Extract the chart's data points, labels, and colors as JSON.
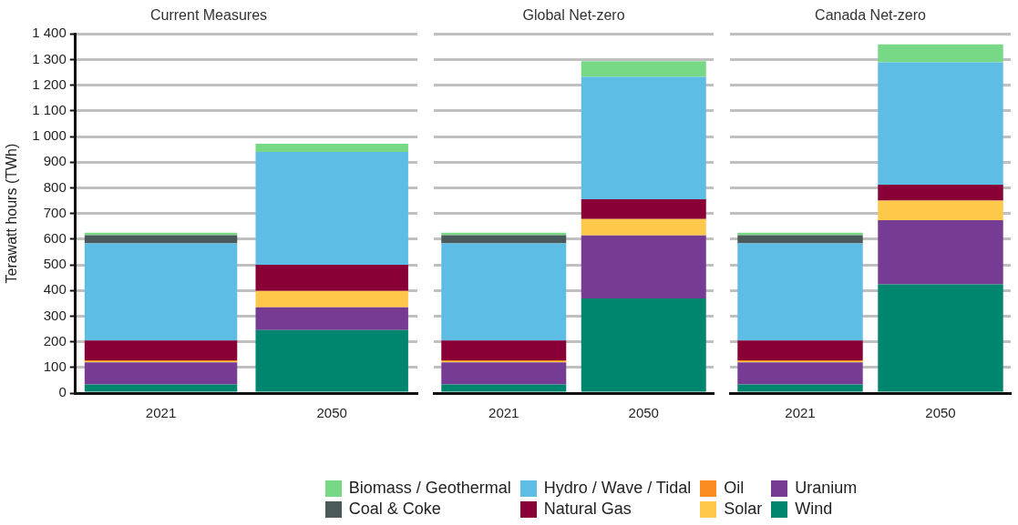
{
  "chart_data": [
    {
      "type": "bar",
      "title": "Current Measures",
      "ylabel": "Terawatt hours (TWh)",
      "categories": [
        "2021",
        "2050"
      ],
      "stacked": true,
      "grid": "y",
      "legend": "bottom",
      "ylim": [
        0,
        1400
      ],
      "yticks": [
        0,
        100,
        200,
        300,
        400,
        500,
        600,
        700,
        800,
        900,
        {
          "value": 1000,
          "label": "1 000"
        },
        {
          "value": 1100,
          "label": "1 100"
        },
        {
          "value": 1200,
          "label": "1 200"
        },
        {
          "value": 1300,
          "label": "1 300"
        },
        {
          "value": 1400,
          "label": "1 400"
        }
      ],
      "series": [
        {
          "name": "Wind",
          "color": "#00856f",
          "values": [
            34,
            246
          ]
        },
        {
          "name": "Uranium",
          "color": "#763b93",
          "values": [
            86,
            88
          ]
        },
        {
          "name": "Solar",
          "color": "#fec84a",
          "values": [
            4,
            64
          ]
        },
        {
          "name": "Oil",
          "color": "#fa8b1e",
          "values": [
            4,
            0
          ]
        },
        {
          "name": "Natural Gas",
          "color": "#880036",
          "values": [
            77,
            102
          ]
        },
        {
          "name": "Hydro / Wave / Tidal",
          "color": "#5ebde5",
          "values": [
            378,
            440
          ]
        },
        {
          "name": "Coal & Coke",
          "color": "#4a5a5a",
          "values": [
            32,
            0
          ]
        },
        {
          "name": "Biomass / Geothermal",
          "color": "#77d886",
          "values": [
            10,
            32
          ]
        }
      ]
    },
    {
      "type": "bar",
      "title": "Global Net-zero",
      "categories": [
        "2021",
        "2050"
      ],
      "stacked": true,
      "grid": "y",
      "tick_labels": "x",
      "ylim": [
        0,
        1400
      ],
      "yticks": [
        0,
        100,
        200,
        300,
        400,
        500,
        600,
        700,
        800,
        900,
        1000,
        1100,
        1200,
        1300,
        1400
      ],
      "series": [
        {
          "color": "#00856f",
          "values": [
            34,
            369
          ]
        },
        {
          "color": "#763b93",
          "values": [
            86,
            245
          ]
        },
        {
          "color": "#fec84a",
          "values": [
            4,
            64
          ]
        },
        {
          "color": "#fa8b1e",
          "values": [
            4,
            0
          ]
        },
        {
          "color": "#880036",
          "values": [
            77,
            77
          ]
        },
        {
          "color": "#5ebde5",
          "values": [
            378,
            477
          ]
        },
        {
          "color": "#4a5a5a",
          "values": [
            32,
            0
          ]
        },
        {
          "color": "#77d886",
          "values": [
            10,
            61
          ]
        }
      ]
    },
    {
      "type": "bar",
      "title": "Canada Net-zero",
      "categories": [
        "2021",
        "2050"
      ],
      "stacked": true,
      "grid": "y",
      "tick_labels": "x",
      "ylim": [
        0,
        1400
      ],
      "yticks": [
        0,
        100,
        200,
        300,
        400,
        500,
        600,
        700,
        800,
        900,
        1000,
        1100,
        1200,
        1300,
        1400
      ],
      "series": [
        {
          "color": "#00856f",
          "values": [
            34,
            424
          ]
        },
        {
          "color": "#763b93",
          "values": [
            86,
            250
          ]
        },
        {
          "color": "#fec84a",
          "values": [
            4,
            76
          ]
        },
        {
          "color": "#fa8b1e",
          "values": [
            4,
            0
          ]
        },
        {
          "color": "#880036",
          "values": [
            77,
            62
          ]
        },
        {
          "color": "#5ebde5",
          "values": [
            378,
            477
          ]
        },
        {
          "color": "#4a5a5a",
          "values": [
            32,
            0
          ]
        },
        {
          "color": "#77d886",
          "values": [
            10,
            70
          ]
        }
      ]
    }
  ]
}
